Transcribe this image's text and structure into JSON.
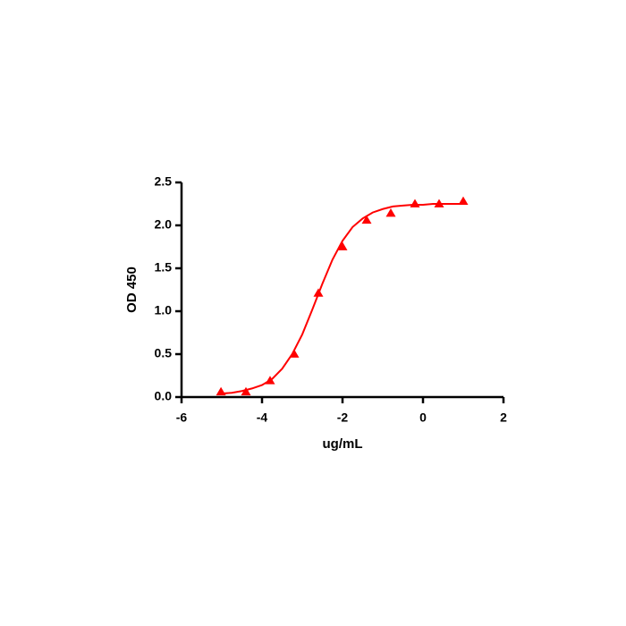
{
  "chart_data": {
    "type": "scatter",
    "x_label": "ug/mL",
    "y_label": "OD 450",
    "xlim": [
      -6,
      2
    ],
    "xticks": [
      -6,
      -4,
      -2,
      0,
      2
    ],
    "ylim": [
      0,
      2.5
    ],
    "yticks": [
      {
        "value": 0,
        "label": "0.0"
      },
      0.5,
      {
        "value": 1,
        "label": "1.0"
      },
      1.5,
      {
        "value": 2,
        "label": "2.0"
      },
      2.5
    ],
    "series": [
      {
        "color": "#ff0000",
        "marker": "triangle",
        "x": [
          -5.02,
          -4.4,
          -3.8,
          -3.2,
          -2.6,
          -2.0,
          -1.4,
          -0.8,
          -0.2,
          0.4,
          1.0
        ],
        "values": [
          0.06,
          0.06,
          0.19,
          0.5,
          1.21,
          1.75,
          2.06,
          2.14,
          2.25,
          2.25,
          2.28
        ]
      },
      {
        "color": "#ff0000",
        "line": true,
        "x": [
          -5,
          -4.75,
          -4.5,
          -4.25,
          -4,
          -3.75,
          -3.5,
          -3.25,
          -3,
          -2.75,
          -2.5,
          -2.25,
          -2,
          -1.75,
          -1.5,
          -1.25,
          -1,
          -0.75,
          -0.5,
          -0.25,
          0,
          0.25,
          0.5,
          0.75,
          1
        ],
        "values": [
          0.04,
          0.05,
          0.07,
          0.1,
          0.14,
          0.21,
          0.33,
          0.5,
          0.73,
          1.02,
          1.32,
          1.6,
          1.82,
          1.98,
          2.08,
          2.15,
          2.19,
          2.22,
          2.23,
          2.24,
          2.24,
          2.25,
          2.25,
          2.25,
          2.25
        ]
      }
    ]
  }
}
